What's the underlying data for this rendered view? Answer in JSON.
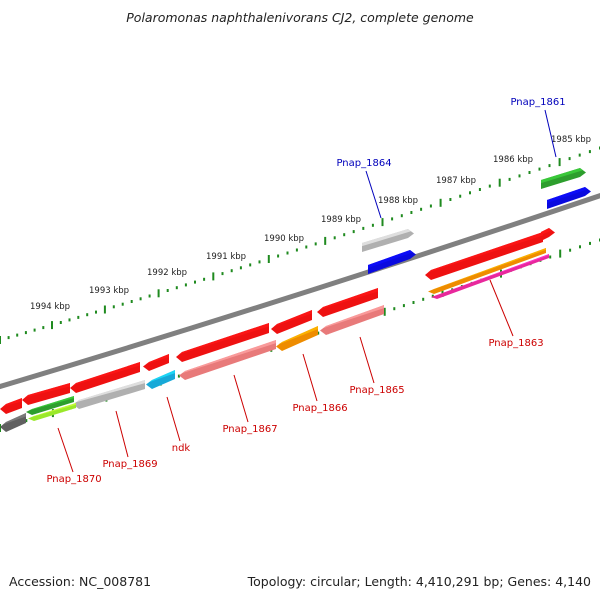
{
  "title": "Polaromonas naphthalenivorans CJ2, complete genome",
  "footer": {
    "accession": "Accession: NC_008781",
    "summary": "Topology: circular; Length: 4,410,291 bp; Genes: 4,140"
  },
  "colors": {
    "backbone": "#808080",
    "tick_dots": "#1f8a1f",
    "label_forward": "#0000bb",
    "label_reverse": "#cc0000"
  },
  "kbp_labels": [
    "1985 kbp",
    "1986 kbp",
    "1987 kbp",
    "1988 kbp",
    "1989 kbp",
    "1990 kbp",
    "1991 kbp",
    "1992 kbp",
    "1993 kbp",
    "1994 kbp"
  ],
  "gene_labels": [
    {
      "text": "Pnap_1861",
      "strand": "forward"
    },
    {
      "text": "Pnap_1864",
      "strand": "forward"
    },
    {
      "text": "Pnap_1863",
      "strand": "reverse"
    },
    {
      "text": "Pnap_1865",
      "strand": "reverse"
    },
    {
      "text": "Pnap_1866",
      "strand": "reverse"
    },
    {
      "text": "Pnap_1867",
      "strand": "reverse"
    },
    {
      "text": "ndk",
      "strand": "reverse"
    },
    {
      "text": "Pnap_1869",
      "strand": "reverse"
    },
    {
      "text": "Pnap_1870",
      "strand": "reverse"
    }
  ],
  "features": [
    {
      "name": "Pnap_1861",
      "strand": "forward",
      "color": "#2d9e2d"
    },
    {
      "name": "Pnap_1861-cds",
      "strand": "forward",
      "color": "#0a0adf"
    },
    {
      "name": "Pnap_1862",
      "strand": "reverse",
      "color": "#ee1111"
    },
    {
      "name": "Pnap_1863",
      "strand": "reverse",
      "color": "#ee1111"
    },
    {
      "name": "Pnap_1863-a",
      "strand": "reverse",
      "color": "#ee8c00"
    },
    {
      "name": "Pnap_1863-b",
      "strand": "reverse",
      "color": "#e8289c"
    },
    {
      "name": "Pnap_1864",
      "strand": "forward",
      "color": "#b0b0b0"
    },
    {
      "name": "Pnap_1864-cds",
      "strand": "forward",
      "color": "#0a0adf"
    },
    {
      "name": "Pnap_1865",
      "strand": "reverse",
      "color": "#ee1111"
    },
    {
      "name": "Pnap_1865-cds",
      "strand": "reverse",
      "color": "#e87a7a"
    },
    {
      "name": "Pnap_1866",
      "strand": "reverse",
      "color": "#ee1111"
    },
    {
      "name": "Pnap_1866-cds",
      "strand": "reverse",
      "color": "#ee8c00"
    },
    {
      "name": "Pnap_1867",
      "strand": "reverse",
      "color": "#ee1111"
    },
    {
      "name": "Pnap_1867-cds",
      "strand": "reverse",
      "color": "#e87a7a"
    },
    {
      "name": "ndk",
      "strand": "reverse",
      "color": "#ee1111"
    },
    {
      "name": "ndk-cds",
      "strand": "reverse",
      "color": "#17a9d8"
    },
    {
      "name": "Pnap_1869",
      "strand": "reverse",
      "color": "#ee1111"
    },
    {
      "name": "Pnap_1869-cds",
      "strand": "reverse",
      "color": "#b0b0b0"
    },
    {
      "name": "Pnap_1870",
      "strand": "reverse",
      "color": "#ee1111"
    },
    {
      "name": "Pnap_1870-cds",
      "strand": "reverse",
      "color": "#2d9e2d"
    },
    {
      "name": "Pnap_1870-cds2",
      "strand": "reverse",
      "color": "#9ae82a"
    },
    {
      "name": "Pnap_1871",
      "strand": "reverse",
      "color": "#ee1111"
    },
    {
      "name": "Pnap_1871-cds",
      "strand": "reverse",
      "color": "#606060"
    }
  ]
}
